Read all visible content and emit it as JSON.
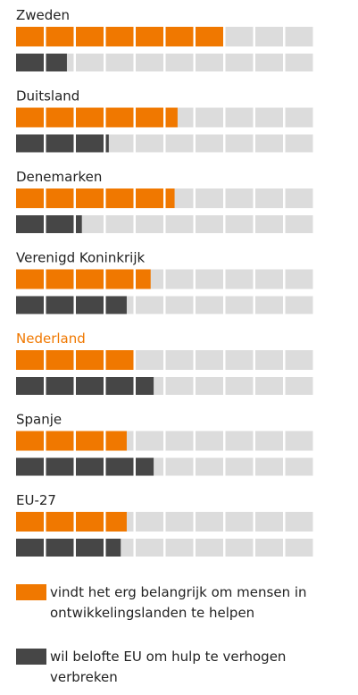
{
  "chart_data": {
    "type": "waffle-bar",
    "categories": [
      "Zweden",
      "Duitsland",
      "Denemarken",
      "Verenigd Koninkrijk",
      "Nederland",
      "Spanje",
      "EU-27"
    ],
    "series": [
      {
        "name": "vindt het erg belangrijk om mensen in ontwikkelingslanden te helpen",
        "color": "#f07800",
        "values": [
          70,
          54,
          53,
          45,
          40,
          37,
          37
        ]
      },
      {
        "name": "wil belofte EU om hulp te verhogen verbreken",
        "color": "#464646",
        "values": [
          17,
          31,
          22,
          37,
          46,
          46,
          35
        ]
      }
    ],
    "xlim": [
      0,
      100
    ],
    "segments": 10,
    "track_color": "#dcdcdc",
    "highlight": {
      "index": 4,
      "color": "#f07800"
    }
  }
}
